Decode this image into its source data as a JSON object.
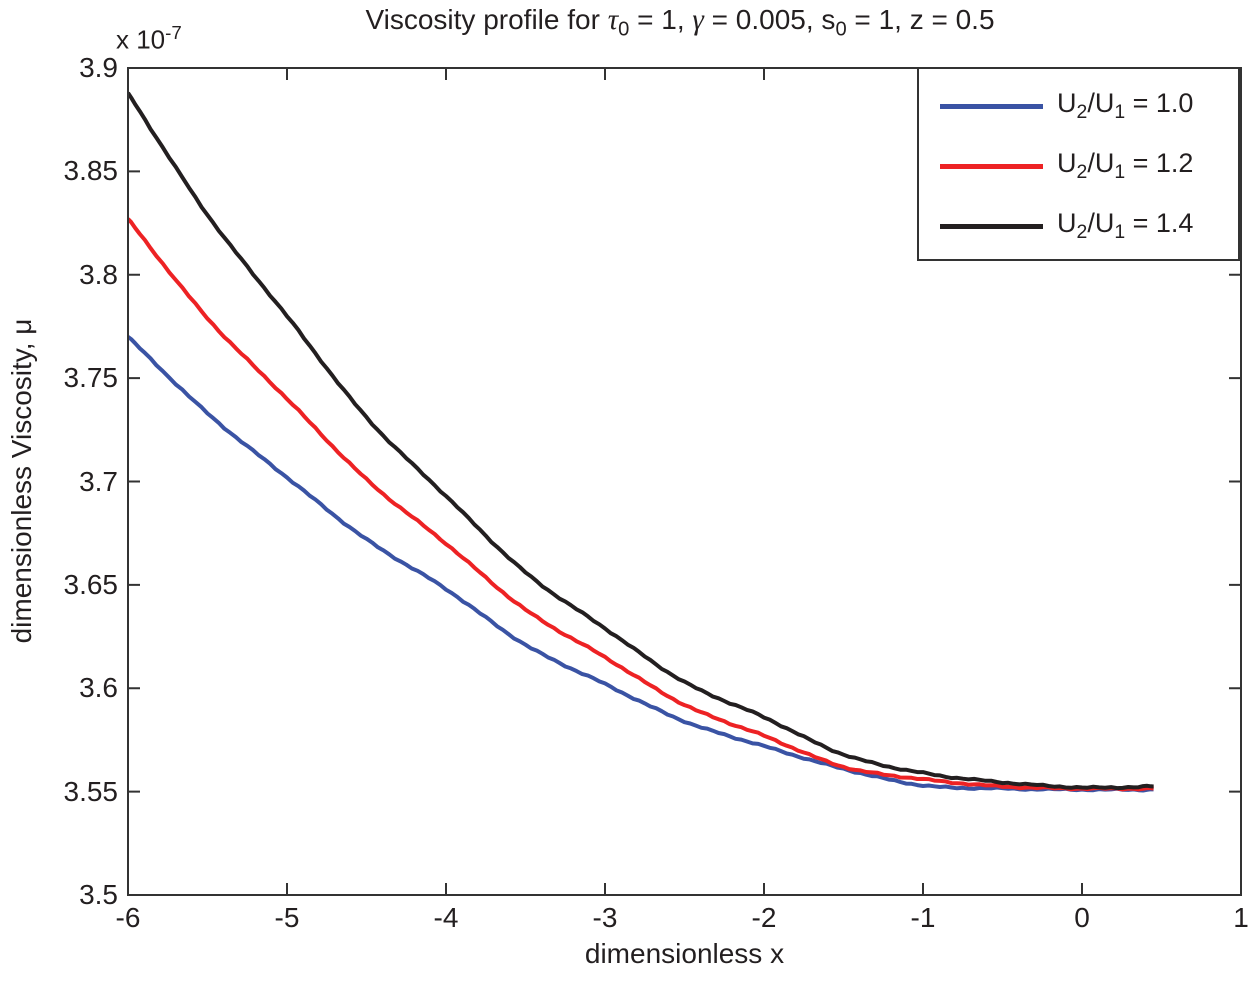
{
  "chart_data": {
    "type": "line",
    "title": "Viscosity profile for τ0 = 1, γ = 0.005, s0 = 1, z = 0.5",
    "title_parts": [
      {
        "text": "Viscosity profile for "
      },
      {
        "text": "τ",
        "style": "italic"
      },
      {
        "text": "0",
        "style": "sub"
      },
      {
        "text": " = 1,  "
      },
      {
        "text": "γ",
        "style": "italic"
      },
      {
        "text": " = 0.005, s"
      },
      {
        "text": "0",
        "style": "sub"
      },
      {
        "text": " = 1, z = 0.5"
      }
    ],
    "xlabel": "dimensionless x",
    "ylabel": "dimensionless Viscosity, μ",
    "y_scale_label": "x 10^-7",
    "y_scale_parts": [
      {
        "text": "x 10"
      },
      {
        "text": "-7",
        "style": "sup"
      }
    ],
    "y_unit_multiplier": "1e-7",
    "xlim": [
      -6,
      1
    ],
    "ylim": [
      3.5,
      3.9
    ],
    "grid": false,
    "legend_position": "top-right",
    "xtick_labels": [
      "-6",
      "-5",
      "-4",
      "-3",
      "-2",
      "-1",
      "0",
      "1"
    ],
    "ytick_labels_top_down": [
      "3.9",
      "3.85",
      "3.8",
      "3.75",
      "3.7",
      "3.65",
      "3.6",
      "3.55",
      "3.5"
    ],
    "x": [
      -6,
      -5.5,
      -5,
      -4.5,
      -4,
      -3.5,
      -3,
      -2.5,
      -2,
      -1.5,
      -1,
      -0.5,
      0,
      0.45
    ],
    "series": [
      {
        "name": "U2/U1 = 1.0",
        "label_parts": [
          {
            "text": "U"
          },
          {
            "text": "2",
            "style": "sub"
          },
          {
            "text": "/U"
          },
          {
            "text": "1",
            "style": "sub"
          },
          {
            "text": " = 1.0"
          }
        ],
        "color": "#3A53A4",
        "y": [
          3.77,
          3.733,
          3.702,
          3.672,
          3.648,
          3.621,
          3.602,
          3.584,
          3.572,
          3.561,
          3.553,
          3.5515,
          3.551,
          3.551
        ]
      },
      {
        "name": "U2/U1 = 1.2",
        "label_parts": [
          {
            "text": "U"
          },
          {
            "text": "2",
            "style": "sub"
          },
          {
            "text": "/U"
          },
          {
            "text": "1",
            "style": "sub"
          },
          {
            "text": " = 1.2"
          }
        ],
        "color": "#ED2224",
        "y": [
          3.827,
          3.779,
          3.74,
          3.701,
          3.67,
          3.638,
          3.615,
          3.592,
          3.577,
          3.562,
          3.556,
          3.5525,
          3.5515,
          3.5515
        ]
      },
      {
        "name": "U2/U1 = 1.4",
        "label_parts": [
          {
            "text": "U"
          },
          {
            "text": "2",
            "style": "sub"
          },
          {
            "text": "/U"
          },
          {
            "text": "1",
            "style": "sub"
          },
          {
            "text": " = 1.4"
          }
        ],
        "color": "#231F20",
        "y": [
          3.888,
          3.829,
          3.78,
          3.731,
          3.693,
          3.656,
          3.629,
          3.603,
          3.586,
          3.568,
          3.559,
          3.5545,
          3.552,
          3.5525
        ]
      }
    ],
    "axis_color": "#333333",
    "text_color": "#231F20"
  }
}
